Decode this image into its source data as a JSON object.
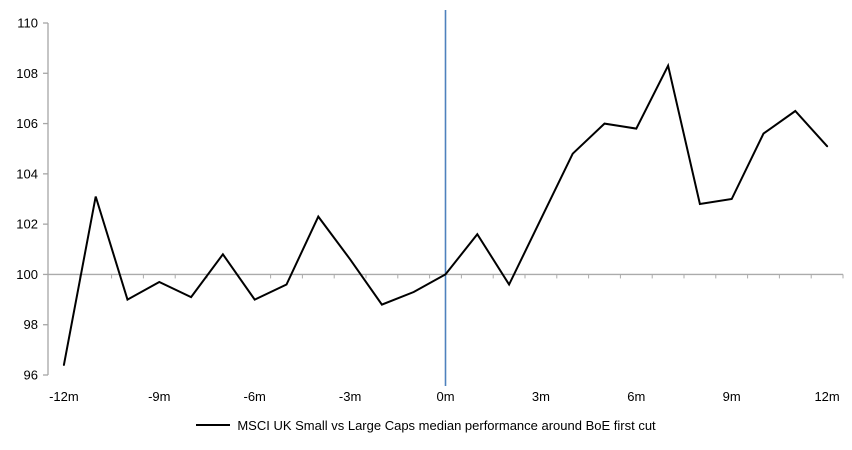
{
  "chart_data": {
    "type": "line",
    "title": "",
    "xlabel": "",
    "ylabel": "",
    "x": [
      -12,
      -11,
      -10,
      -9,
      -8,
      -7,
      -6,
      -5,
      -4,
      -3,
      -2,
      -1,
      0,
      1,
      2,
      3,
      4,
      5,
      6,
      7,
      8,
      9,
      10,
      11,
      12
    ],
    "series": [
      {
        "name": "MSCI UK Small vs Large Caps median performance around BoE first cut",
        "values": [
          96.4,
          103.1,
          99.0,
          99.7,
          99.1,
          100.8,
          99.0,
          99.6,
          102.3,
          100.6,
          98.8,
          99.3,
          100.0,
          101.6,
          99.6,
          102.2,
          104.8,
          106.0,
          105.8,
          108.3,
          102.8,
          103.0,
          105.6,
          106.5,
          105.1
        ],
        "color": "#000000"
      }
    ],
    "ylim": [
      96,
      110
    ],
    "y_ticks": [
      96,
      98,
      100,
      102,
      104,
      106,
      108,
      110
    ],
    "y_tick_labels": [
      "96",
      "98",
      "100",
      "102",
      "104",
      "106",
      "108",
      "110"
    ],
    "x_tick_values": [
      -12,
      -9,
      -6,
      -3,
      0,
      3,
      6,
      9,
      12
    ],
    "x_tick_labels": [
      "-12m",
      "-9m",
      "-6m",
      "-3m",
      "0m",
      "3m",
      "6m",
      "9m",
      "12m"
    ],
    "baseline_value": 100,
    "event_line_x": 0,
    "grid": "off",
    "legend_position": "bottom",
    "colors": {
      "series_line": "#000000",
      "event_line": "#4E81BD",
      "axis": "#A6A6A6",
      "baseline": "#ABABAB",
      "tick_label": "#000000"
    }
  }
}
